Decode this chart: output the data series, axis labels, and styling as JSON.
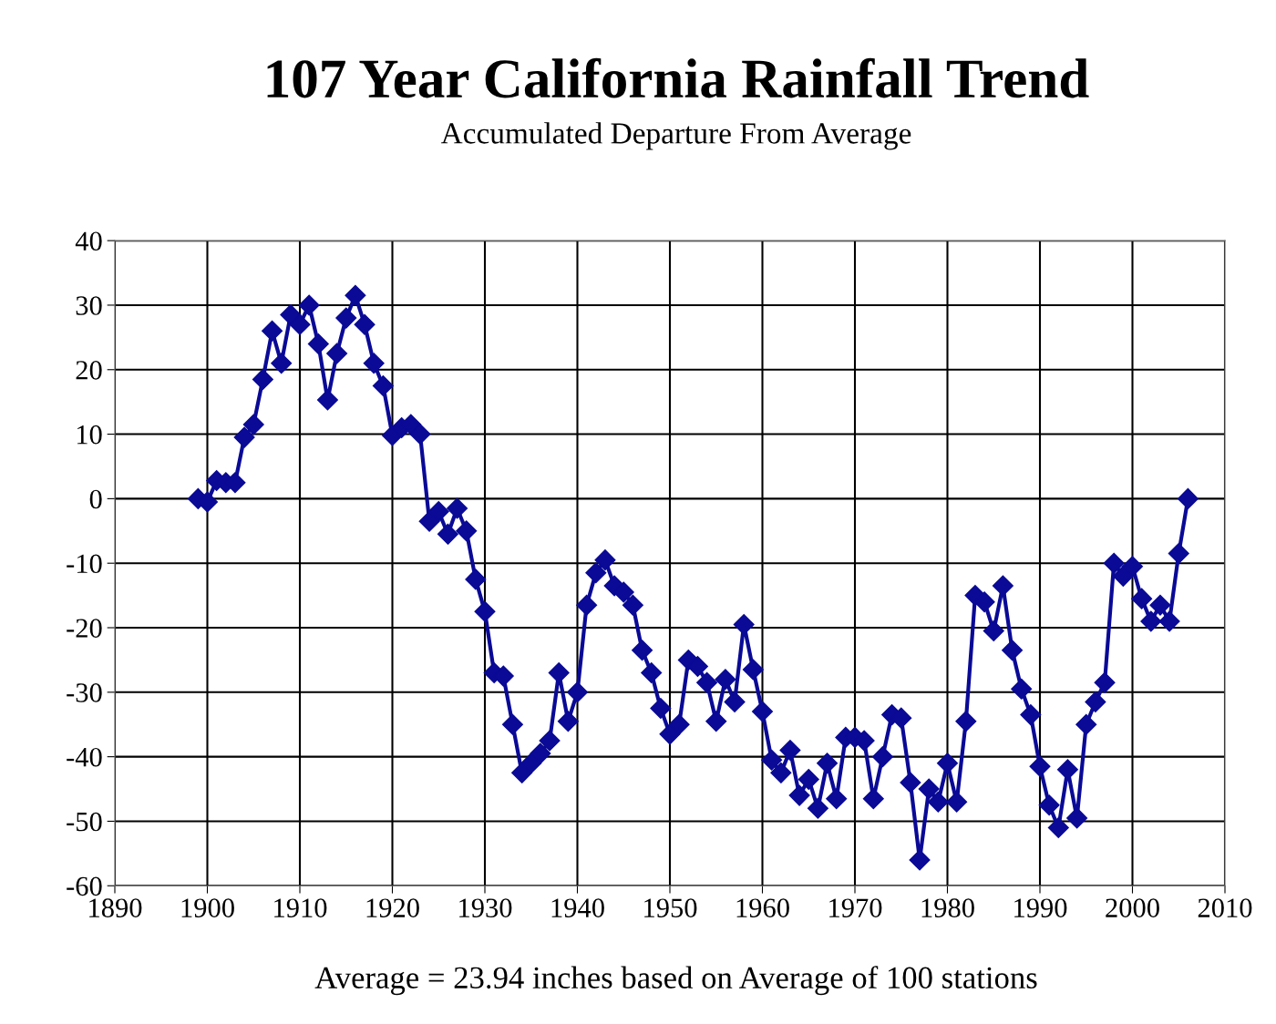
{
  "chart_data": {
    "type": "line",
    "title": "107 Year California Rainfall Trend",
    "subtitle": "Accumulated Departure From Average",
    "annotations": [
      "Average = 23.94 inches based on Average of 100 stations"
    ],
    "x": [
      1899,
      1900,
      1901,
      1902,
      1903,
      1904,
      1905,
      1906,
      1907,
      1908,
      1909,
      1910,
      1911,
      1912,
      1913,
      1914,
      1915,
      1916,
      1917,
      1918,
      1919,
      1920,
      1921,
      1922,
      1923,
      1924,
      1925,
      1926,
      1927,
      1928,
      1929,
      1930,
      1931,
      1932,
      1933,
      1934,
      1935,
      1936,
      1937,
      1938,
      1939,
      1940,
      1941,
      1942,
      1943,
      1944,
      1945,
      1946,
      1947,
      1948,
      1949,
      1950,
      1951,
      1952,
      1953,
      1954,
      1955,
      1956,
      1957,
      1958,
      1959,
      1960,
      1961,
      1962,
      1963,
      1964,
      1965,
      1966,
      1967,
      1968,
      1969,
      1970,
      1971,
      1972,
      1973,
      1974,
      1975,
      1976,
      1977,
      1978,
      1979,
      1980,
      1981,
      1982,
      1983,
      1984,
      1985,
      1986,
      1987,
      1988,
      1989,
      1990,
      1991,
      1992,
      1993,
      1994,
      1995,
      1996,
      1997,
      1998,
      1999,
      2000,
      2001,
      2002,
      2003,
      2004,
      2005,
      2006
    ],
    "series": [
      {
        "color": "#0a0a96",
        "values": [
          0,
          -0.5,
          2.8,
          2.5,
          2.5,
          9.5,
          11.5,
          18.5,
          26,
          21,
          28.5,
          27,
          30,
          24,
          15.3,
          22.5,
          28,
          31.5,
          27,
          21,
          17.5,
          9.8,
          11,
          11.5,
          10,
          -3.5,
          -2,
          -5.5,
          -1.5,
          -5,
          -12.5,
          -17.5,
          -27,
          -27.5,
          -35,
          -42.5,
          -41,
          -39.5,
          -37.5,
          -27,
          -34.5,
          -30,
          -16.5,
          -11.5,
          -9.5,
          -13.5,
          -14.5,
          -16.5,
          -23.5,
          -27,
          -32.5,
          -36.5,
          -35,
          -25,
          -26,
          -28.5,
          -34.5,
          -28,
          -31.5,
          -19.5,
          -26.5,
          -33,
          -40.5,
          -42.5,
          -39,
          -46,
          -43.5,
          -48,
          -41,
          -46.5,
          -37,
          -37,
          -37.5,
          -46.5,
          -40,
          -33.5,
          -34,
          -44,
          -56,
          -45,
          -47,
          -41,
          -47,
          -34.5,
          -15,
          -16,
          -20.5,
          -13.5,
          -23.5,
          -29.5,
          -33.5,
          -41.5,
          -47.5,
          -51,
          -42,
          -49.5,
          -35,
          -31.5,
          -28.5,
          -10,
          -12,
          -10.5,
          -15.5,
          -19,
          -16.5,
          -19,
          -8.5,
          0
        ]
      }
    ],
    "xlim": [
      1890,
      2010
    ],
    "xticks": [
      1890,
      1900,
      1910,
      1920,
      1930,
      1940,
      1950,
      1960,
      1970,
      1980,
      1990,
      2000,
      2010
    ],
    "ylim": [
      -60,
      40
    ],
    "yticks": [
      -60,
      -50,
      -40,
      -30,
      -20,
      -10,
      0,
      10,
      20,
      30,
      40
    ],
    "grid": true,
    "marker": "diamond",
    "line_style": "solid"
  }
}
